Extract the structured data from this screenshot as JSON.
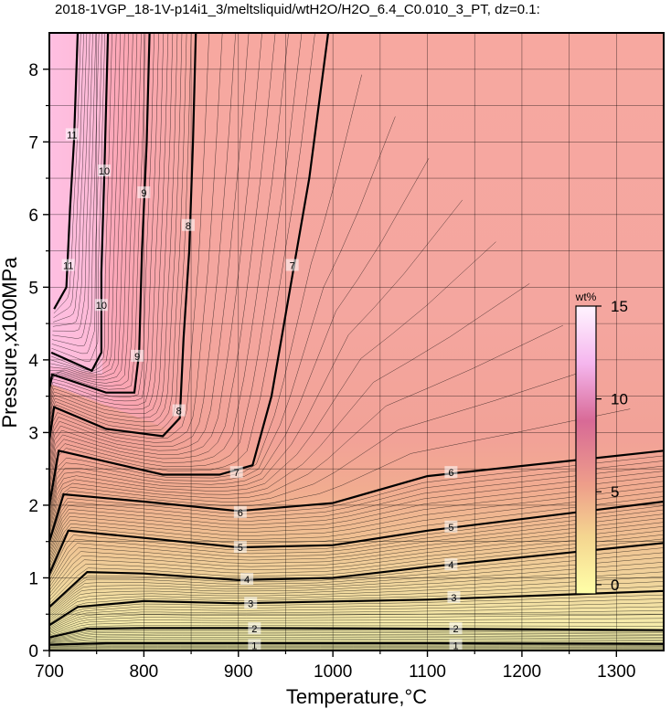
{
  "chart_data": {
    "type": "heatmap",
    "title": "2018-1VGP_18-1V-p14i1_3/meltsliquid/wtH2O/H2O_6.4_C0.010_3_PT, dz=0.1:",
    "xlabel": "Temperature,°C",
    "ylabel": "Pressure,x100MPa",
    "xlim": [
      700,
      1350
    ],
    "ylim": [
      0,
      8.5
    ],
    "x_ticks": [
      700,
      800,
      900,
      1000,
      1100,
      1200,
      1300
    ],
    "y_ticks": [
      0,
      1,
      2,
      3,
      4,
      5,
      6,
      7,
      8
    ],
    "grid": true,
    "colorbar": {
      "title": "wt%",
      "min": -0.5,
      "max": 15,
      "ticks": [
        0,
        5,
        10,
        15
      ],
      "colors": [
        "#ffffb0",
        "#f2c890",
        "#f0a89a",
        "#ffa8bc",
        "#fffaff"
      ],
      "placement": "right-inside"
    },
    "major_contours": [
      {
        "level": "1",
        "points": [
          [
            700,
            0.08
          ],
          [
            760,
            0.1
          ],
          [
            900,
            0.1
          ],
          [
            1100,
            0.1
          ],
          [
            1350,
            0.09
          ]
        ],
        "labels": [
          [
            917,
            0.07
          ],
          [
            1130,
            0.07
          ]
        ]
      },
      {
        "level": "2",
        "points": [
          [
            700,
            0.18
          ],
          [
            740,
            0.3
          ],
          [
            800,
            0.31
          ],
          [
            900,
            0.31
          ],
          [
            1100,
            0.3
          ],
          [
            1350,
            0.28
          ]
        ],
        "labels": [
          [
            917,
            0.3
          ],
          [
            1130,
            0.3
          ]
        ]
      },
      {
        "level": "3",
        "points": [
          [
            700,
            0.35
          ],
          [
            730,
            0.6
          ],
          [
            800,
            0.68
          ],
          [
            900,
            0.65
          ],
          [
            1100,
            0.7
          ],
          [
            1350,
            0.82
          ]
        ],
        "labels": [
          [
            913,
            0.65
          ],
          [
            1128,
            0.73
          ]
        ]
      },
      {
        "level": "4",
        "points": [
          [
            700,
            0.6
          ],
          [
            740,
            1.08
          ],
          [
            800,
            1.06
          ],
          [
            900,
            0.97
          ],
          [
            1000,
            1.0
          ],
          [
            1100,
            1.15
          ],
          [
            1350,
            1.48
          ]
        ],
        "labels": [
          [
            909,
            0.98
          ],
          [
            1125,
            1.18
          ]
        ]
      },
      {
        "level": "5",
        "points": [
          [
            700,
            1.05
          ],
          [
            720,
            1.65
          ],
          [
            800,
            1.55
          ],
          [
            900,
            1.42
          ],
          [
            1000,
            1.45
          ],
          [
            1100,
            1.65
          ],
          [
            1350,
            2.05
          ]
        ],
        "labels": [
          [
            902,
            1.42
          ],
          [
            1125,
            1.7
          ]
        ]
      },
      {
        "level": "6",
        "points": [
          [
            700,
            1.5
          ],
          [
            715,
            2.15
          ],
          [
            800,
            2.05
          ],
          [
            900,
            1.92
          ],
          [
            1000,
            2.03
          ],
          [
            1100,
            2.4
          ],
          [
            1350,
            2.75
          ]
        ],
        "labels": [
          [
            902,
            1.9
          ],
          [
            1125,
            2.45
          ]
        ]
      },
      {
        "level": "7",
        "points": [
          [
            700,
            2.0
          ],
          [
            710,
            2.75
          ],
          [
            760,
            2.6
          ],
          [
            820,
            2.42
          ],
          [
            880,
            2.42
          ],
          [
            915,
            2.55
          ],
          [
            935,
            3.5
          ],
          [
            955,
            5.0
          ],
          [
            975,
            6.5
          ],
          [
            995,
            8.5
          ]
        ],
        "labels": [
          [
            898,
            2.45
          ],
          [
            957,
            5.3
          ]
        ]
      },
      {
        "level": "8",
        "points": [
          [
            700,
            2.9
          ],
          [
            705,
            3.35
          ],
          [
            760,
            3.05
          ],
          [
            820,
            2.95
          ],
          [
            838,
            3.2
          ],
          [
            842,
            4.3
          ],
          [
            848,
            5.5
          ],
          [
            852,
            7.0
          ],
          [
            855,
            8.5
          ]
        ],
        "labels": [
          [
            837,
            3.3
          ],
          [
            847,
            5.85
          ]
        ]
      },
      {
        "level": "9",
        "points": [
          [
            700,
            3.6
          ],
          [
            703,
            3.8
          ],
          [
            760,
            3.55
          ],
          [
            790,
            3.55
          ],
          [
            795,
            4.1
          ],
          [
            798,
            5.5
          ],
          [
            803,
            7.0
          ],
          [
            806,
            8.5
          ]
        ],
        "labels": [
          [
            793,
            4.05
          ],
          [
            800,
            6.3
          ]
        ]
      },
      {
        "level": "10",
        "points": [
          [
            702,
            4.1
          ],
          [
            745,
            3.85
          ],
          [
            755,
            4.1
          ],
          [
            755,
            5.2
          ],
          [
            758,
            6.5
          ],
          [
            762,
            8.5
          ]
        ],
        "labels": [
          [
            755,
            4.75
          ],
          [
            758,
            6.6
          ]
        ]
      },
      {
        "level": "11",
        "points": [
          [
            705,
            4.7
          ],
          [
            718,
            5.0
          ],
          [
            722,
            6.1
          ],
          [
            726,
            7.0
          ],
          [
            730,
            8.5
          ]
        ],
        "labels": [
          [
            720,
            5.3
          ],
          [
            724,
            7.1
          ]
        ]
      }
    ],
    "minor_contour_step": 0.1
  }
}
